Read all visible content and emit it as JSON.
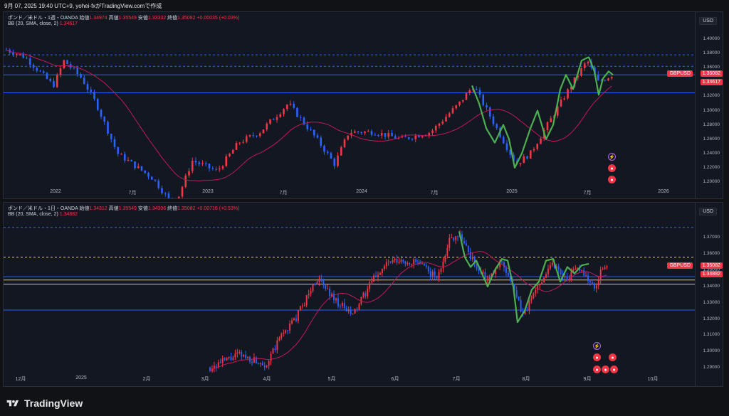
{
  "header": {
    "title": "9月 07, 2025 19:40 UTC+9, yohei-fxがTradingView.comで作成"
  },
  "footer": {
    "brand": "TradingView"
  },
  "panels": [
    {
      "legend": {
        "symbol": "ポンド／米ドル・1週・OANDA",
        "open_label": "始値",
        "open": "1.34974",
        "high_label": "高値",
        "high": "1.35549",
        "low_label": "安値",
        "low": "1.33332",
        "close_label": "終値",
        "close": "1.35082",
        "change": "+0.00035 (+0.03%)",
        "bb_label": "BB (20, SMA, close, 2)",
        "bb_value": "1.34617"
      },
      "currency": "USD",
      "price_tag": "1.35082",
      "bb_tag": "1.34617",
      "symbol_tag": "GBPUSD",
      "y_ticks": [
        "1.40000",
        "1.38000",
        "1.36000",
        "1.34000",
        "1.32000",
        "1.30000",
        "1.28000",
        "1.26000",
        "1.24000",
        "1.22000",
        "1.20000"
      ],
      "x_ticks": [
        "2022",
        "7月",
        "2023",
        "7月",
        "2024",
        "7月",
        "2025",
        "7月",
        "2026"
      ]
    },
    {
      "legend": {
        "symbol": "ポンド／米ドル・1日・OANDA",
        "open_label": "始値",
        "open": "1.34312",
        "high_label": "高値",
        "high": "1.35549",
        "low_label": "安値",
        "low": "1.34306",
        "close_label": "終値",
        "close": "1.35082",
        "change": "+0.00716 (+0.53%)",
        "bb_label": "BB (20, SMA, close, 2)",
        "bb_value": "1.34882"
      },
      "currency": "USD",
      "price_tag": "1.35082",
      "bb_tag": "1.34882",
      "symbol_tag": "GBPUSD",
      "y_ticks": [
        "1.37000",
        "1.36000",
        "1.35000",
        "1.34000",
        "1.33000",
        "1.32000",
        "1.31000",
        "1.30000",
        "1.29000"
      ],
      "x_ticks": [
        "12月",
        "2025",
        "2月",
        "3月",
        "4月",
        "5月",
        "6月",
        "7月",
        "8月",
        "9月",
        "10月"
      ]
    }
  ],
  "colors": {
    "up": "#f23645",
    "down": "#2962ff",
    "bb": "#c2185b",
    "wave": "#4caf50",
    "hline": "#2962ff",
    "yellow": "#e8d44d",
    "bg": "#131722"
  }
}
